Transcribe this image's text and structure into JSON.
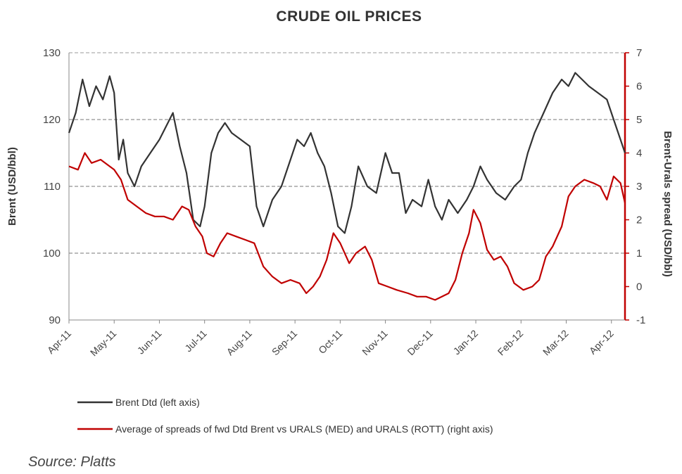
{
  "chart_data": {
    "type": "line",
    "title": "CRUDE OIL PRICES",
    "ylabel_left": "Brent (USD/bbl)",
    "ylabel_right": "Brent-Urals spread (USD/bbl)",
    "ylim_left": [
      90,
      130
    ],
    "yticks_left": [
      "90",
      "100",
      "110",
      "120",
      "130"
    ],
    "ylim_right": [
      -1,
      7
    ],
    "yticks_right": [
      "-1",
      "0",
      "1",
      "2",
      "3",
      "4",
      "5",
      "6",
      "7"
    ],
    "x_months": [
      "Apr-11",
      "May-11",
      "Jun-11",
      "Jul-11",
      "Aug-11",
      "Sep-11",
      "Oct-11",
      "Nov-11",
      "Dec-11",
      "Jan-12",
      "Feb-12",
      "Mar-12",
      "Apr-12"
    ],
    "grid": "horizontal dashed",
    "legend_position": "bottom",
    "series": [
      {
        "name": "Brent Dtd (left axis)",
        "axis": "left",
        "color": "#333333",
        "points": [
          [
            0.0,
            118
          ],
          [
            0.15,
            121
          ],
          [
            0.3,
            126
          ],
          [
            0.45,
            122
          ],
          [
            0.6,
            125
          ],
          [
            0.75,
            123
          ],
          [
            0.9,
            126.5
          ],
          [
            1.0,
            124
          ],
          [
            1.1,
            114
          ],
          [
            1.2,
            117
          ],
          [
            1.3,
            112
          ],
          [
            1.45,
            110
          ],
          [
            1.6,
            113
          ],
          [
            1.8,
            115
          ],
          [
            2.0,
            117
          ],
          [
            2.15,
            119
          ],
          [
            2.3,
            121
          ],
          [
            2.45,
            116
          ],
          [
            2.6,
            112
          ],
          [
            2.75,
            105
          ],
          [
            2.9,
            104
          ],
          [
            3.0,
            107
          ],
          [
            3.15,
            115
          ],
          [
            3.3,
            118
          ],
          [
            3.45,
            119.5
          ],
          [
            3.6,
            118
          ],
          [
            3.8,
            117
          ],
          [
            4.0,
            116
          ],
          [
            4.15,
            107
          ],
          [
            4.3,
            104
          ],
          [
            4.5,
            108
          ],
          [
            4.7,
            110
          ],
          [
            4.9,
            114
          ],
          [
            5.05,
            117
          ],
          [
            5.2,
            116
          ],
          [
            5.35,
            118
          ],
          [
            5.5,
            115
          ],
          [
            5.65,
            113
          ],
          [
            5.8,
            109
          ],
          [
            5.95,
            104
          ],
          [
            6.1,
            103
          ],
          [
            6.25,
            107
          ],
          [
            6.4,
            113
          ],
          [
            6.6,
            110
          ],
          [
            6.8,
            109
          ],
          [
            7.0,
            115
          ],
          [
            7.15,
            112
          ],
          [
            7.3,
            112
          ],
          [
            7.45,
            106
          ],
          [
            7.6,
            108
          ],
          [
            7.8,
            107
          ],
          [
            7.95,
            111
          ],
          [
            8.1,
            107
          ],
          [
            8.25,
            105
          ],
          [
            8.4,
            108
          ],
          [
            8.6,
            106
          ],
          [
            8.8,
            108
          ],
          [
            8.95,
            110
          ],
          [
            9.1,
            113
          ],
          [
            9.25,
            111
          ],
          [
            9.45,
            109
          ],
          [
            9.65,
            108
          ],
          [
            9.85,
            110
          ],
          [
            10.0,
            111
          ],
          [
            10.15,
            115
          ],
          [
            10.3,
            118
          ],
          [
            10.5,
            121
          ],
          [
            10.7,
            124
          ],
          [
            10.9,
            126
          ],
          [
            11.05,
            125
          ],
          [
            11.2,
            127
          ],
          [
            11.35,
            126
          ],
          [
            11.5,
            125
          ],
          [
            11.7,
            124
          ],
          [
            11.9,
            123
          ],
          [
            12.05,
            120
          ],
          [
            12.2,
            117
          ],
          [
            12.3,
            115
          ]
        ]
      },
      {
        "name": "Average of spreads of fwd Dtd Brent vs URALS (MED) and URALS (ROTT) (right axis)",
        "axis": "right",
        "color": "#c00000",
        "points": [
          [
            0.0,
            3.6
          ],
          [
            0.2,
            3.5
          ],
          [
            0.35,
            4.0
          ],
          [
            0.5,
            3.7
          ],
          [
            0.7,
            3.8
          ],
          [
            0.9,
            3.6
          ],
          [
            1.0,
            3.5
          ],
          [
            1.15,
            3.2
          ],
          [
            1.3,
            2.6
          ],
          [
            1.5,
            2.4
          ],
          [
            1.7,
            2.2
          ],
          [
            1.9,
            2.1
          ],
          [
            2.1,
            2.1
          ],
          [
            2.3,
            2.0
          ],
          [
            2.5,
            2.4
          ],
          [
            2.65,
            2.3
          ],
          [
            2.8,
            1.8
          ],
          [
            2.95,
            1.5
          ],
          [
            3.05,
            1.0
          ],
          [
            3.2,
            0.9
          ],
          [
            3.35,
            1.3
          ],
          [
            3.5,
            1.6
          ],
          [
            3.7,
            1.5
          ],
          [
            3.9,
            1.4
          ],
          [
            4.1,
            1.3
          ],
          [
            4.3,
            0.6
          ],
          [
            4.5,
            0.3
          ],
          [
            4.7,
            0.1
          ],
          [
            4.9,
            0.2
          ],
          [
            5.1,
            0.1
          ],
          [
            5.25,
            -0.2
          ],
          [
            5.4,
            0.0
          ],
          [
            5.55,
            0.3
          ],
          [
            5.7,
            0.8
          ],
          [
            5.85,
            1.6
          ],
          [
            6.0,
            1.3
          ],
          [
            6.2,
            0.7
          ],
          [
            6.35,
            1.0
          ],
          [
            6.55,
            1.2
          ],
          [
            6.7,
            0.8
          ],
          [
            6.85,
            0.1
          ],
          [
            7.05,
            0.0
          ],
          [
            7.25,
            -0.1
          ],
          [
            7.5,
            -0.2
          ],
          [
            7.7,
            -0.3
          ],
          [
            7.9,
            -0.3
          ],
          [
            8.1,
            -0.4
          ],
          [
            8.25,
            -0.3
          ],
          [
            8.4,
            -0.2
          ],
          [
            8.55,
            0.2
          ],
          [
            8.7,
            1.0
          ],
          [
            8.85,
            1.6
          ],
          [
            8.95,
            2.3
          ],
          [
            9.1,
            1.9
          ],
          [
            9.25,
            1.1
          ],
          [
            9.4,
            0.8
          ],
          [
            9.55,
            0.9
          ],
          [
            9.7,
            0.6
          ],
          [
            9.85,
            0.1
          ],
          [
            10.05,
            -0.1
          ],
          [
            10.25,
            0.0
          ],
          [
            10.4,
            0.2
          ],
          [
            10.55,
            0.9
          ],
          [
            10.7,
            1.2
          ],
          [
            10.9,
            1.8
          ],
          [
            11.05,
            2.7
          ],
          [
            11.2,
            3.0
          ],
          [
            11.4,
            3.2
          ],
          [
            11.6,
            3.1
          ],
          [
            11.75,
            3.0
          ],
          [
            11.9,
            2.6
          ],
          [
            12.05,
            3.3
          ],
          [
            12.2,
            3.1
          ],
          [
            12.3,
            2.5
          ]
        ]
      }
    ]
  },
  "source": "Source: Platts"
}
